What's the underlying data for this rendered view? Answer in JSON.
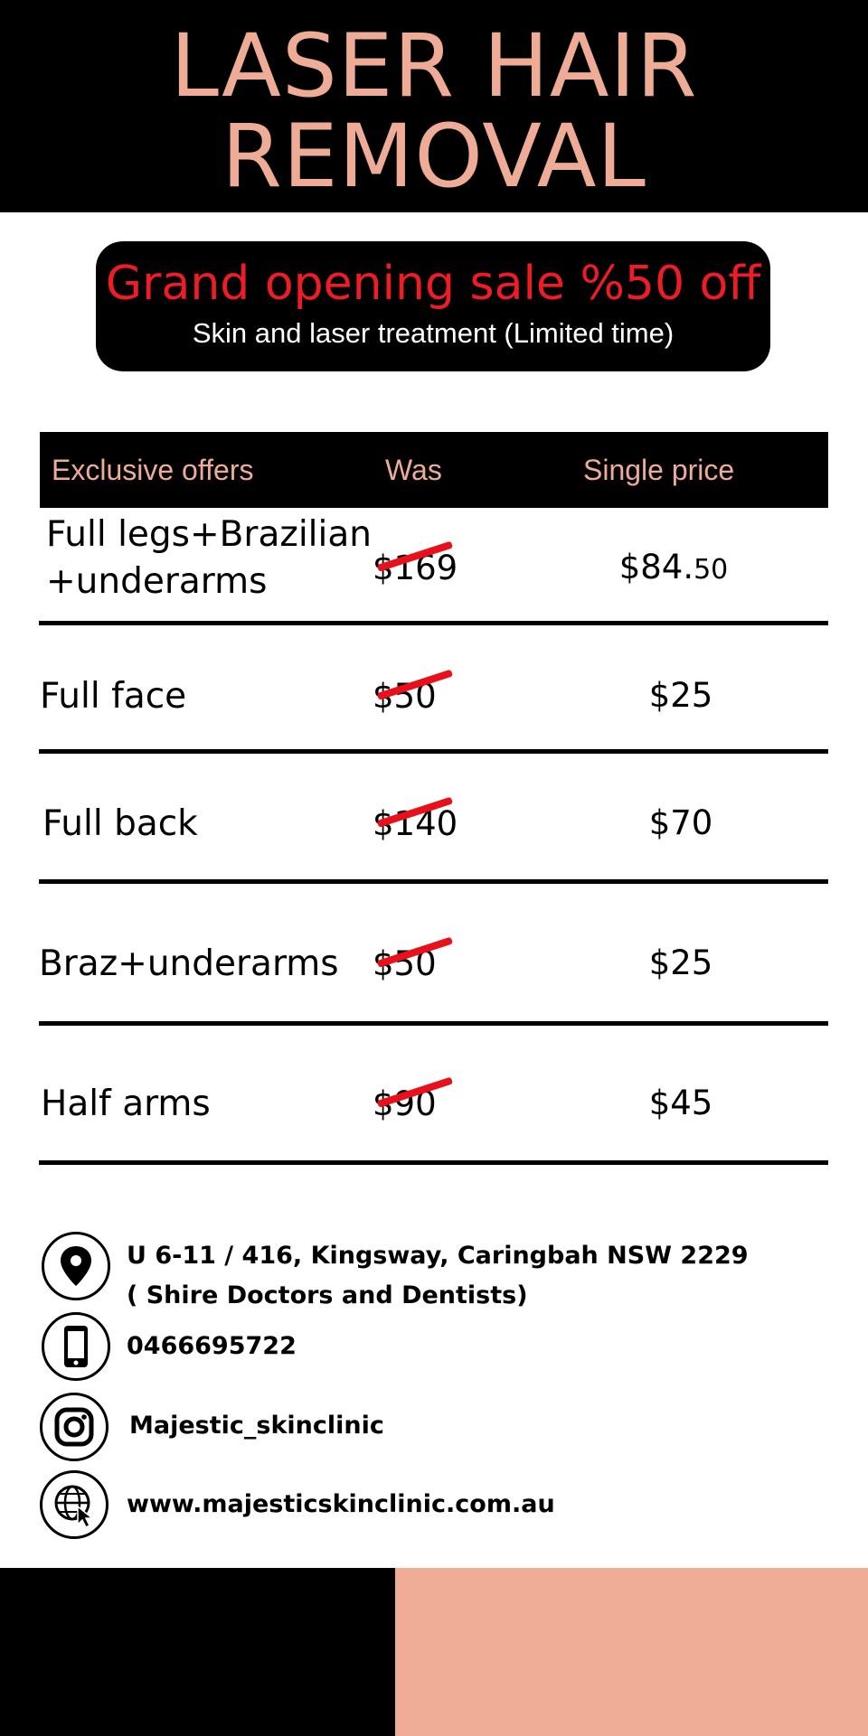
{
  "header": {
    "title_line1": "LASER HAIR",
    "title_line2": "REMOVAL"
  },
  "promo": {
    "headline": "Grand opening sale %50 off",
    "subtext": "Skin and laser treatment (Limited time)"
  },
  "table": {
    "columns": [
      "Exclusive offers",
      "Was",
      "Single price"
    ],
    "rows": [
      {
        "name_line1": "Full legs+Brazilian",
        "name_line2": "+underarms",
        "was": "$169",
        "price_main": "$84.",
        "price_cents": "50"
      },
      {
        "name": "Full face",
        "was": "$50",
        "price": "$25"
      },
      {
        "name": "Full back",
        "was": "$140",
        "price": "$70"
      },
      {
        "name": "Braz+underarms",
        "was": "$50",
        "price": "$25"
      },
      {
        "name": "Half arms",
        "was": "$90",
        "price": "$45"
      }
    ]
  },
  "contact": {
    "address_line1": "U 6-11 / 416, Kingsway, Caringbah NSW 2229",
    "address_line2": "( Shire Doctors and Dentists)",
    "phone": "0466695722",
    "instagram": "Majestic_skinclinic",
    "website": "www.majesticskinclinic.com.au",
    "icons": [
      "location-pin-icon",
      "phone-icon",
      "instagram-icon",
      "globe-cursor-icon"
    ]
  },
  "colors": {
    "accent": "#eeac96",
    "sale_red": "#ee1c24",
    "dark": "#000000",
    "footer_pink": "#efac96"
  }
}
